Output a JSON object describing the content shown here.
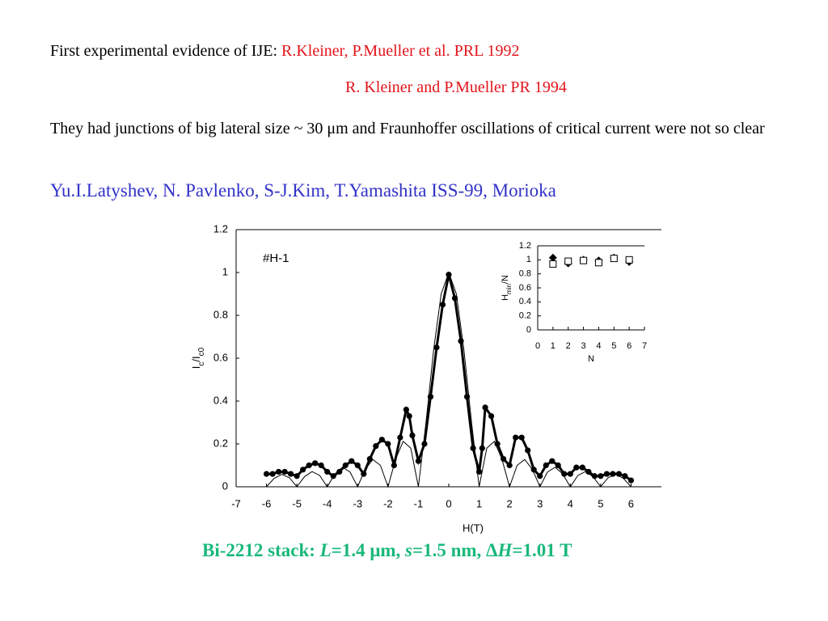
{
  "slide": {
    "line1": {
      "lead": "First experimental evidence of IJE: ",
      "ref": "R.Kleiner, P.Mueller et al. PRL 1992"
    },
    "line2": "R. Kleiner and P.Mueller PR 1994",
    "paragraph": "They had junctions of big lateral size ~ 30 μm and Fraunhoffer oscillations of critical current were not so clear",
    "authors": "Yu.I.Latyshev, N. Pavlenko, S-J.Kim, T.Yamashita ISS-99, Morioka",
    "caption": {
      "p1": "Bi-2212 stack: ",
      "p2": "L",
      "p3": "=1.4 μm, ",
      "p4": "s",
      "p5": "=1.5 nm, Δ",
      "p6": "H",
      "p7": "=1.01 T"
    }
  },
  "chart_data": [
    {
      "type": "line",
      "annotation": "#H-1",
      "x_label": "H(T)",
      "y_label": {
        "a": "I",
        "b": "c",
        "c": "/I",
        "d": "c0"
      },
      "xlim": [
        -7,
        7
      ],
      "xticks": [
        -7,
        -6,
        -5,
        -4,
        -3,
        -2,
        -1,
        0,
        1,
        2,
        3,
        4,
        5,
        6
      ],
      "ylim": [
        0,
        1.2
      ],
      "yticks": [
        0,
        0.2,
        0.4,
        0.6,
        0.8,
        1,
        1.2
      ],
      "series": [
        {
          "color": "#000000",
          "marker": "circle",
          "x": [
            -6.0,
            -5.8,
            -5.6,
            -5.4,
            -5.2,
            -5.0,
            -4.8,
            -4.6,
            -4.4,
            -4.2,
            -4.0,
            -3.8,
            -3.6,
            -3.4,
            -3.2,
            -3.0,
            -2.8,
            -2.6,
            -2.4,
            -2.2,
            -2.0,
            -1.8,
            -1.6,
            -1.4,
            -1.3,
            -1.2,
            -1.0,
            -0.8,
            -0.6,
            -0.4,
            -0.2,
            0.0,
            0.2,
            0.4,
            0.6,
            0.8,
            1.0,
            1.1,
            1.2,
            1.4,
            1.6,
            1.8,
            2.0,
            2.2,
            2.4,
            2.6,
            2.8,
            3.0,
            3.2,
            3.4,
            3.6,
            3.8,
            4.0,
            4.2,
            4.4,
            4.6,
            4.8,
            5.0,
            5.2,
            5.4,
            5.6,
            5.8,
            6.0
          ],
          "values": [
            0.06,
            0.06,
            0.07,
            0.07,
            0.06,
            0.05,
            0.08,
            0.1,
            0.11,
            0.1,
            0.07,
            0.05,
            0.07,
            0.1,
            0.12,
            0.1,
            0.06,
            0.13,
            0.19,
            0.22,
            0.2,
            0.1,
            0.23,
            0.36,
            0.33,
            0.24,
            0.12,
            0.2,
            0.42,
            0.65,
            0.85,
            0.99,
            0.88,
            0.68,
            0.42,
            0.18,
            0.07,
            0.18,
            0.37,
            0.33,
            0.2,
            0.13,
            0.1,
            0.23,
            0.23,
            0.17,
            0.08,
            0.05,
            0.1,
            0.12,
            0.1,
            0.06,
            0.06,
            0.09,
            0.09,
            0.07,
            0.05,
            0.05,
            0.06,
            0.06,
            0.06,
            0.05,
            0.03
          ]
        },
        {
          "color": "#000000",
          "marker": "none",
          "x": [
            -6,
            -5.75,
            -5.5,
            -5.25,
            -5,
            -4.75,
            -4.5,
            -4.25,
            -4,
            -3.75,
            -3.5,
            -3.25,
            -3,
            -2.75,
            -2.5,
            -2.25,
            -2,
            -1.75,
            -1.5,
            -1.25,
            -1,
            -0.75,
            -0.5,
            -0.25,
            0,
            0.25,
            0.5,
            0.75,
            1,
            1.25,
            1.5,
            1.75,
            2,
            2.25,
            2.5,
            2.75,
            3,
            3.25,
            3.5,
            3.75,
            4,
            4.25,
            4.5,
            4.75,
            5,
            5.25,
            5.5,
            5.75,
            6
          ],
          "values": [
            0,
            0.039,
            0.058,
            0.043,
            0,
            0.047,
            0.071,
            0.053,
            0,
            0.06,
            0.091,
            0.069,
            0,
            0.082,
            0.127,
            0.1,
            0,
            0.129,
            0.212,
            0.18,
            0,
            0.3,
            0.637,
            0.9,
            1,
            0.9,
            0.637,
            0.3,
            0,
            0.18,
            0.212,
            0.129,
            0,
            0.1,
            0.127,
            0.082,
            0,
            0.069,
            0.091,
            0.06,
            0,
            0.053,
            0.071,
            0.047,
            0,
            0.043,
            0.058,
            0.039,
            0
          ]
        }
      ]
    },
    {
      "type": "scatter",
      "x_label": "N",
      "y_label": {
        "a": "H",
        "b": "min",
        "c": "/N"
      },
      "xlim": [
        0,
        7
      ],
      "xticks": [
        0,
        1,
        2,
        3,
        4,
        5,
        6,
        7
      ],
      "ylim": [
        0,
        1.2
      ],
      "yticks": [
        0,
        0.2,
        0.4,
        0.6,
        0.8,
        1,
        1.2
      ],
      "series": [
        {
          "color": "#000000",
          "marker": "diamond",
          "x": [
            1,
            2,
            3,
            4,
            5,
            6
          ],
          "values": [
            1.03,
            0.95,
            1.0,
            0.99,
            1.03,
            0.97
          ]
        },
        {
          "color": "#000000",
          "marker": "open-square",
          "x": [
            1,
            2,
            3,
            4,
            5,
            6
          ],
          "values": [
            0.94,
            0.98,
            0.99,
            0.96,
            1.02,
            1.0
          ]
        }
      ]
    }
  ]
}
